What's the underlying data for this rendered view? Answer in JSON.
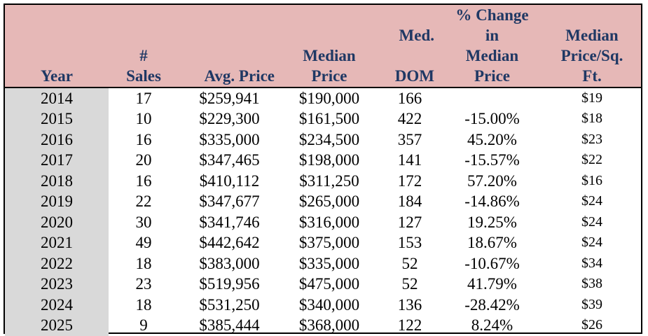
{
  "chart_data": {
    "type": "table",
    "columns": [
      "Year",
      "# Sales",
      "Avg. Price",
      "Median Price",
      "Med. DOM",
      "% Change in Median Price",
      "Median Price/Sq. Ft."
    ],
    "header_lines": [
      [
        "Year"
      ],
      [
        "#",
        "Sales"
      ],
      [
        "Avg. Price"
      ],
      [
        "Median",
        "Price"
      ],
      [
        "Med.",
        "",
        "DOM"
      ],
      [
        "% Change",
        "in",
        "Median",
        "Price"
      ],
      [
        "Median",
        "Price/Sq.",
        "Ft."
      ]
    ],
    "rows": [
      [
        "2014",
        "17",
        "$259,941",
        "$190,000",
        "166",
        "",
        "$19"
      ],
      [
        "2015",
        "10",
        "$229,300",
        "$161,500",
        "422",
        "-15.00%",
        "$18"
      ],
      [
        "2016",
        "16",
        "$335,000",
        "$234,500",
        "357",
        "45.20%",
        "$23"
      ],
      [
        "2017",
        "20",
        "$347,465",
        "$198,000",
        "141",
        "-15.57%",
        "$22"
      ],
      [
        "2018",
        "16",
        "$410,112",
        "$311,250",
        "172",
        "57.20%",
        "$16"
      ],
      [
        "2019",
        "22",
        "$347,677",
        "$265,000",
        "184",
        "-14.86%",
        "$24"
      ],
      [
        "2020",
        "30",
        "$341,746",
        "$316,000",
        "127",
        "19.25%",
        "$24"
      ],
      [
        "2021",
        "49",
        "$442,642",
        "$375,000",
        "153",
        "18.67%",
        "$24"
      ],
      [
        "2022",
        "18",
        "$383,000",
        "$335,000",
        "52",
        "-10.67%",
        "$34"
      ],
      [
        "2023",
        "23",
        "$519,956",
        "$475,000",
        "52",
        "41.79%",
        "$38"
      ],
      [
        "2024",
        "18",
        "$531,250",
        "$340,000",
        "136",
        "-28.42%",
        "$39"
      ],
      [
        "2025",
        "9",
        "$385,444",
        "$368,000",
        "122",
        "8.24%",
        "$26"
      ]
    ]
  },
  "colors": {
    "header_background": "#e6b8b7",
    "header_text": "#1f3864",
    "year_column_background": "#d9d9d9"
  }
}
